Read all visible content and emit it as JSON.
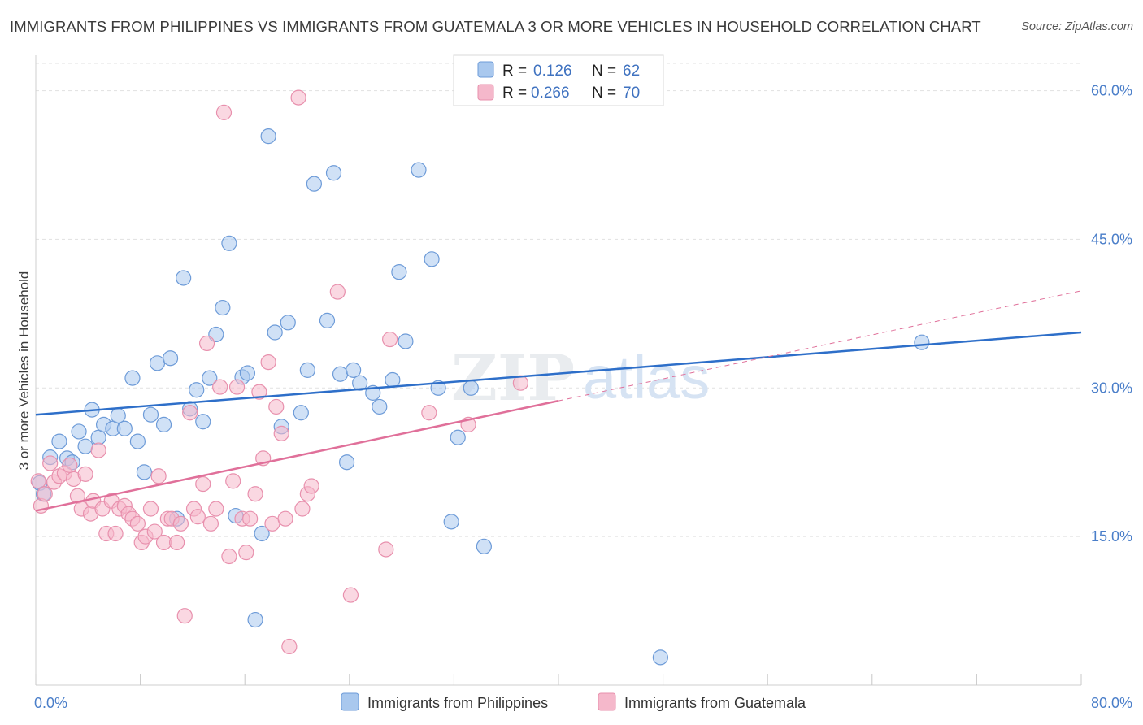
{
  "header": {
    "title": "IMMIGRANTS FROM PHILIPPINES VS IMMIGRANTS FROM GUATEMALA 3 OR MORE VEHICLES IN HOUSEHOLD CORRELATION CHART",
    "source": "Source: ZipAtlas.com"
  },
  "watermark": {
    "zip": "ZIP",
    "atlas": "atlas"
  },
  "legend_top": {
    "r_label": "R =",
    "n_label": "N =",
    "rows": [
      {
        "r": "0.126",
        "n": "62",
        "color": "#a9c8ee"
      },
      {
        "r": "0.266",
        "n": "70",
        "color": "#f5b8cb"
      }
    ]
  },
  "chart_data": {
    "type": "scatter",
    "ylabel": "3 or more Vehicles in Household",
    "xlim": [
      0,
      80
    ],
    "ylim": [
      0,
      63
    ],
    "x_ticks_labeled": [
      {
        "value": 0,
        "label": "0.0%"
      },
      {
        "value": 80,
        "label": "80.0%"
      }
    ],
    "x_ticks_minor": [
      0,
      8,
      16,
      24,
      32,
      40,
      48,
      56,
      64,
      72,
      80
    ],
    "y_ticks": [
      {
        "value": 15,
        "label": "15.0%"
      },
      {
        "value": 30,
        "label": "30.0%"
      },
      {
        "value": 45,
        "label": "45.0%"
      },
      {
        "value": 60,
        "label": "60.0%"
      }
    ],
    "grid": true,
    "legend_position": "bottom",
    "series": [
      {
        "name": "Immigrants from Philippines",
        "color": "#a9c8ee",
        "stroke": "#6d9bd8",
        "trend_color": "#2e6fc9",
        "trend": {
          "x0": 0,
          "y0": 27.3,
          "x1": 80,
          "y1": 35.6,
          "solid_until": 80
        },
        "points": [
          [
            0.3,
            20.4
          ],
          [
            0.6,
            19.3
          ],
          [
            1.1,
            23.0
          ],
          [
            1.8,
            24.6
          ],
          [
            2.4,
            22.9
          ],
          [
            2.8,
            22.5
          ],
          [
            3.3,
            25.6
          ],
          [
            3.8,
            24.1
          ],
          [
            4.3,
            27.8
          ],
          [
            4.8,
            25.0
          ],
          [
            5.2,
            26.3
          ],
          [
            5.9,
            25.9
          ],
          [
            6.3,
            27.2
          ],
          [
            6.8,
            25.9
          ],
          [
            7.4,
            31.0
          ],
          [
            7.8,
            24.6
          ],
          [
            8.3,
            21.5
          ],
          [
            8.8,
            27.3
          ],
          [
            9.3,
            32.5
          ],
          [
            9.8,
            26.3
          ],
          [
            10.3,
            33.0
          ],
          [
            10.8,
            16.8
          ],
          [
            11.3,
            41.1
          ],
          [
            11.8,
            27.9
          ],
          [
            12.3,
            29.8
          ],
          [
            12.8,
            26.6
          ],
          [
            13.3,
            31.0
          ],
          [
            13.8,
            35.4
          ],
          [
            14.3,
            38.1
          ],
          [
            14.8,
            44.6
          ],
          [
            15.3,
            17.1
          ],
          [
            15.8,
            31.1
          ],
          [
            16.2,
            31.5
          ],
          [
            16.8,
            6.6
          ],
          [
            17.3,
            15.3
          ],
          [
            17.8,
            55.4
          ],
          [
            18.3,
            35.6
          ],
          [
            18.8,
            26.1
          ],
          [
            19.3,
            36.6
          ],
          [
            20.3,
            27.5
          ],
          [
            20.8,
            31.8
          ],
          [
            21.3,
            50.6
          ],
          [
            22.3,
            36.8
          ],
          [
            22.8,
            51.7
          ],
          [
            23.3,
            31.4
          ],
          [
            23.8,
            22.5
          ],
          [
            24.3,
            31.8
          ],
          [
            24.8,
            30.5
          ],
          [
            25.8,
            29.5
          ],
          [
            26.3,
            28.1
          ],
          [
            27.3,
            30.8
          ],
          [
            27.8,
            41.7
          ],
          [
            28.3,
            34.7
          ],
          [
            29.3,
            52.0
          ],
          [
            30.3,
            43.0
          ],
          [
            30.8,
            30.0
          ],
          [
            31.8,
            16.5
          ],
          [
            32.3,
            25.0
          ],
          [
            33.3,
            30.0
          ],
          [
            34.3,
            14.0
          ],
          [
            47.8,
            2.8
          ],
          [
            67.8,
            34.6
          ]
        ]
      },
      {
        "name": "Immigrants from Guatemala",
        "color": "#f5b8cb",
        "stroke": "#e890ad",
        "trend_color": "#e0709a",
        "trend": {
          "x0": 0,
          "y0": 17.6,
          "x1": 80,
          "y1": 39.8,
          "solid_until": 40
        },
        "points": [
          [
            0.2,
            20.6
          ],
          [
            0.4,
            18.1
          ],
          [
            0.7,
            19.3
          ],
          [
            1.1,
            22.4
          ],
          [
            1.4,
            20.5
          ],
          [
            1.8,
            21.1
          ],
          [
            2.2,
            21.4
          ],
          [
            2.6,
            22.2
          ],
          [
            2.9,
            20.8
          ],
          [
            3.2,
            19.1
          ],
          [
            3.5,
            17.8
          ],
          [
            3.8,
            21.3
          ],
          [
            4.2,
            17.3
          ],
          [
            4.4,
            18.6
          ],
          [
            4.8,
            23.7
          ],
          [
            5.1,
            17.8
          ],
          [
            5.4,
            15.3
          ],
          [
            5.8,
            18.6
          ],
          [
            6.1,
            15.3
          ],
          [
            6.4,
            17.8
          ],
          [
            6.8,
            18.1
          ],
          [
            7.1,
            17.3
          ],
          [
            7.4,
            16.8
          ],
          [
            7.8,
            16.3
          ],
          [
            8.1,
            14.4
          ],
          [
            8.4,
            15.0
          ],
          [
            8.8,
            17.8
          ],
          [
            9.1,
            15.5
          ],
          [
            9.4,
            21.1
          ],
          [
            9.8,
            14.4
          ],
          [
            10.1,
            16.8
          ],
          [
            10.4,
            16.8
          ],
          [
            10.8,
            14.4
          ],
          [
            11.1,
            16.3
          ],
          [
            11.4,
            7.0
          ],
          [
            11.8,
            27.5
          ],
          [
            12.1,
            17.8
          ],
          [
            12.4,
            17.0
          ],
          [
            12.8,
            20.3
          ],
          [
            13.1,
            34.5
          ],
          [
            13.4,
            16.3
          ],
          [
            13.8,
            17.8
          ],
          [
            14.1,
            30.1
          ],
          [
            14.4,
            57.8
          ],
          [
            14.8,
            13.0
          ],
          [
            15.1,
            20.6
          ],
          [
            15.4,
            30.1
          ],
          [
            15.8,
            16.8
          ],
          [
            16.1,
            13.4
          ],
          [
            16.4,
            16.8
          ],
          [
            16.8,
            19.3
          ],
          [
            17.1,
            29.6
          ],
          [
            17.4,
            22.9
          ],
          [
            17.8,
            32.6
          ],
          [
            18.1,
            16.3
          ],
          [
            18.4,
            28.1
          ],
          [
            18.8,
            25.4
          ],
          [
            19.1,
            16.8
          ],
          [
            19.4,
            3.9
          ],
          [
            20.1,
            59.3
          ],
          [
            20.4,
            17.8
          ],
          [
            20.8,
            19.3
          ],
          [
            21.1,
            20.1
          ],
          [
            23.1,
            39.7
          ],
          [
            24.1,
            9.1
          ],
          [
            26.8,
            13.7
          ],
          [
            27.1,
            34.9
          ],
          [
            30.1,
            27.5
          ],
          [
            33.1,
            26.3
          ],
          [
            37.1,
            30.5
          ]
        ]
      }
    ]
  }
}
